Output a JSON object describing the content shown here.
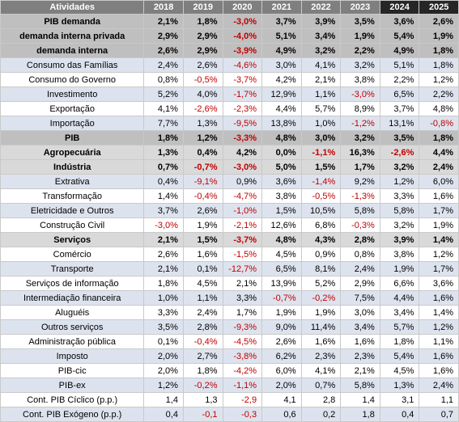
{
  "columns": [
    "Atividades",
    "2018",
    "2019",
    "2020",
    "2021",
    "2022",
    "2023",
    "2024",
    "2025"
  ],
  "rows": [
    {
      "style": "g1",
      "cells": [
        "PIB demanda",
        "2,1%",
        "1,8%",
        "-3,0%",
        "3,7%",
        "3,9%",
        "3,5%",
        "3,6%",
        "2,6%"
      ]
    },
    {
      "style": "g1",
      "cells": [
        "demanda interna privada",
        "2,9%",
        "2,9%",
        "-4,0%",
        "5,1%",
        "3,4%",
        "1,9%",
        "5,4%",
        "1,9%"
      ]
    },
    {
      "style": "g1",
      "cells": [
        "demanda interna",
        "2,6%",
        "2,9%",
        "-3,9%",
        "4,9%",
        "3,2%",
        "2,2%",
        "4,9%",
        "1,8%"
      ]
    },
    {
      "style": "b",
      "cells": [
        "Consumo das Famílias",
        "2,4%",
        "2,6%",
        "-4,6%",
        "3,0%",
        "4,1%",
        "3,2%",
        "5,1%",
        "1,8%"
      ]
    },
    {
      "style": "w",
      "cells": [
        "Consumo do Governo",
        "0,8%",
        "-0,5%",
        "-3,7%",
        "4,2%",
        "2,1%",
        "3,8%",
        "2,2%",
        "1,2%"
      ]
    },
    {
      "style": "b",
      "cells": [
        "Investimento",
        "5,2%",
        "4,0%",
        "-1,7%",
        "12,9%",
        "1,1%",
        "-3,0%",
        "6,5%",
        "2,2%"
      ]
    },
    {
      "style": "w",
      "cells": [
        "Exportação",
        "4,1%",
        "-2,6%",
        "-2,3%",
        "4,4%",
        "5,7%",
        "8,9%",
        "3,7%",
        "4,8%"
      ]
    },
    {
      "style": "b",
      "cells": [
        "Importação",
        "7,7%",
        "1,3%",
        "-9,5%",
        "13,8%",
        "1,0%",
        "-1,2%",
        "13,1%",
        "-0,8%"
      ]
    },
    {
      "style": "g1",
      "cells": [
        "PIB",
        "1,8%",
        "1,2%",
        "-3,3%",
        "4,8%",
        "3,0%",
        "3,2%",
        "3,5%",
        "1,8%"
      ]
    },
    {
      "style": "g2",
      "cells": [
        "Agropecuária",
        "1,3%",
        "0,4%",
        "4,2%",
        "0,0%",
        "-1,1%",
        "16,3%",
        "-2,6%",
        "4,4%"
      ]
    },
    {
      "style": "g2",
      "cells": [
        "Indústria",
        "0,7%",
        "-0,7%",
        "-3,0%",
        "5,0%",
        "1,5%",
        "1,7%",
        "3,2%",
        "2,4%"
      ]
    },
    {
      "style": "b",
      "cells": [
        "Extrativa",
        "0,4%",
        "-9,1%",
        "0,9%",
        "3,6%",
        "-1,4%",
        "9,2%",
        "1,2%",
        "6,0%"
      ]
    },
    {
      "style": "w",
      "cells": [
        "Transformação",
        "1,4%",
        "-0,4%",
        "-4,7%",
        "3,8%",
        "-0,5%",
        "-1,3%",
        "3,3%",
        "1,6%"
      ]
    },
    {
      "style": "b",
      "cells": [
        "Eletricidade e Outros",
        "3,7%",
        "2,6%",
        "-1,0%",
        "1,5%",
        "10,5%",
        "5,8%",
        "5,8%",
        "1,7%"
      ]
    },
    {
      "style": "w",
      "cells": [
        "Construção Civil",
        "-3,0%",
        "1,9%",
        "-2,1%",
        "12,6%",
        "6,8%",
        "-0,3%",
        "3,2%",
        "1,9%"
      ]
    },
    {
      "style": "g2",
      "cells": [
        "Serviços",
        "2,1%",
        "1,5%",
        "-3,7%",
        "4,8%",
        "4,3%",
        "2,8%",
        "3,9%",
        "1,4%"
      ]
    },
    {
      "style": "w",
      "cells": [
        "Comércio",
        "2,6%",
        "1,6%",
        "-1,5%",
        "4,5%",
        "0,9%",
        "0,8%",
        "3,8%",
        "1,2%"
      ]
    },
    {
      "style": "b",
      "cells": [
        "Transporte",
        "2,1%",
        "0,1%",
        "-12,7%",
        "6,5%",
        "8,1%",
        "2,4%",
        "1,9%",
        "1,7%"
      ]
    },
    {
      "style": "w",
      "cells": [
        "Serviços de informação",
        "1,8%",
        "4,5%",
        "2,1%",
        "13,9%",
        "5,2%",
        "2,9%",
        "6,6%",
        "3,6%"
      ]
    },
    {
      "style": "b",
      "cells": [
        "Intermediação financeira",
        "1,0%",
        "1,1%",
        "3,3%",
        "-0,7%",
        "-0,2%",
        "7,5%",
        "4,4%",
        "1,6%"
      ]
    },
    {
      "style": "w",
      "cells": [
        "Aluguéis",
        "3,3%",
        "2,4%",
        "1,7%",
        "1,9%",
        "1,9%",
        "3,0%",
        "3,4%",
        "1,4%"
      ]
    },
    {
      "style": "b",
      "cells": [
        "Outros serviços",
        "3,5%",
        "2,8%",
        "-9,3%",
        "9,0%",
        "11,4%",
        "3,4%",
        "5,7%",
        "1,2%"
      ]
    },
    {
      "style": "w",
      "cells": [
        "Administração pública",
        "0,1%",
        "-0,4%",
        "-4,5%",
        "2,6%",
        "1,6%",
        "1,6%",
        "1,8%",
        "1,1%"
      ]
    },
    {
      "style": "b",
      "cells": [
        "Imposto",
        "2,0%",
        "2,7%",
        "-3,8%",
        "6,2%",
        "2,3%",
        "2,3%",
        "5,4%",
        "1,6%"
      ]
    },
    {
      "style": "w",
      "cells": [
        "PIB-cic",
        "2,0%",
        "1,8%",
        "-4,2%",
        "6,0%",
        "4,1%",
        "2,1%",
        "4,5%",
        "1,6%"
      ]
    },
    {
      "style": "b",
      "cells": [
        "PIB-ex",
        "1,2%",
        "-0,2%",
        "-1,1%",
        "2,0%",
        "0,7%",
        "5,8%",
        "1,3%",
        "2,4%"
      ]
    },
    {
      "style": "w",
      "cells": [
        "Cont. PIB Cíclico (p.p.)",
        "1,4",
        "1,3",
        "-2,9",
        "4,1",
        "2,8",
        "1,4",
        "3,1",
        "1,1"
      ]
    },
    {
      "style": "b",
      "cells": [
        "Cont. PIB Exógeno (p.p.)",
        "0,4",
        "-0,1",
        "-0,3",
        "0,6",
        "0,2",
        "1,8",
        "0,4",
        "0,7"
      ]
    }
  ],
  "colors": {
    "header_bg": "#7f7f7f",
    "projection_header_bg": "#262626",
    "group_row_bg": "#bfbfbf",
    "subgroup_row_bg": "#d9d9d9",
    "band_row_bg": "#dde3ee",
    "negative_text": "#c00000"
  }
}
